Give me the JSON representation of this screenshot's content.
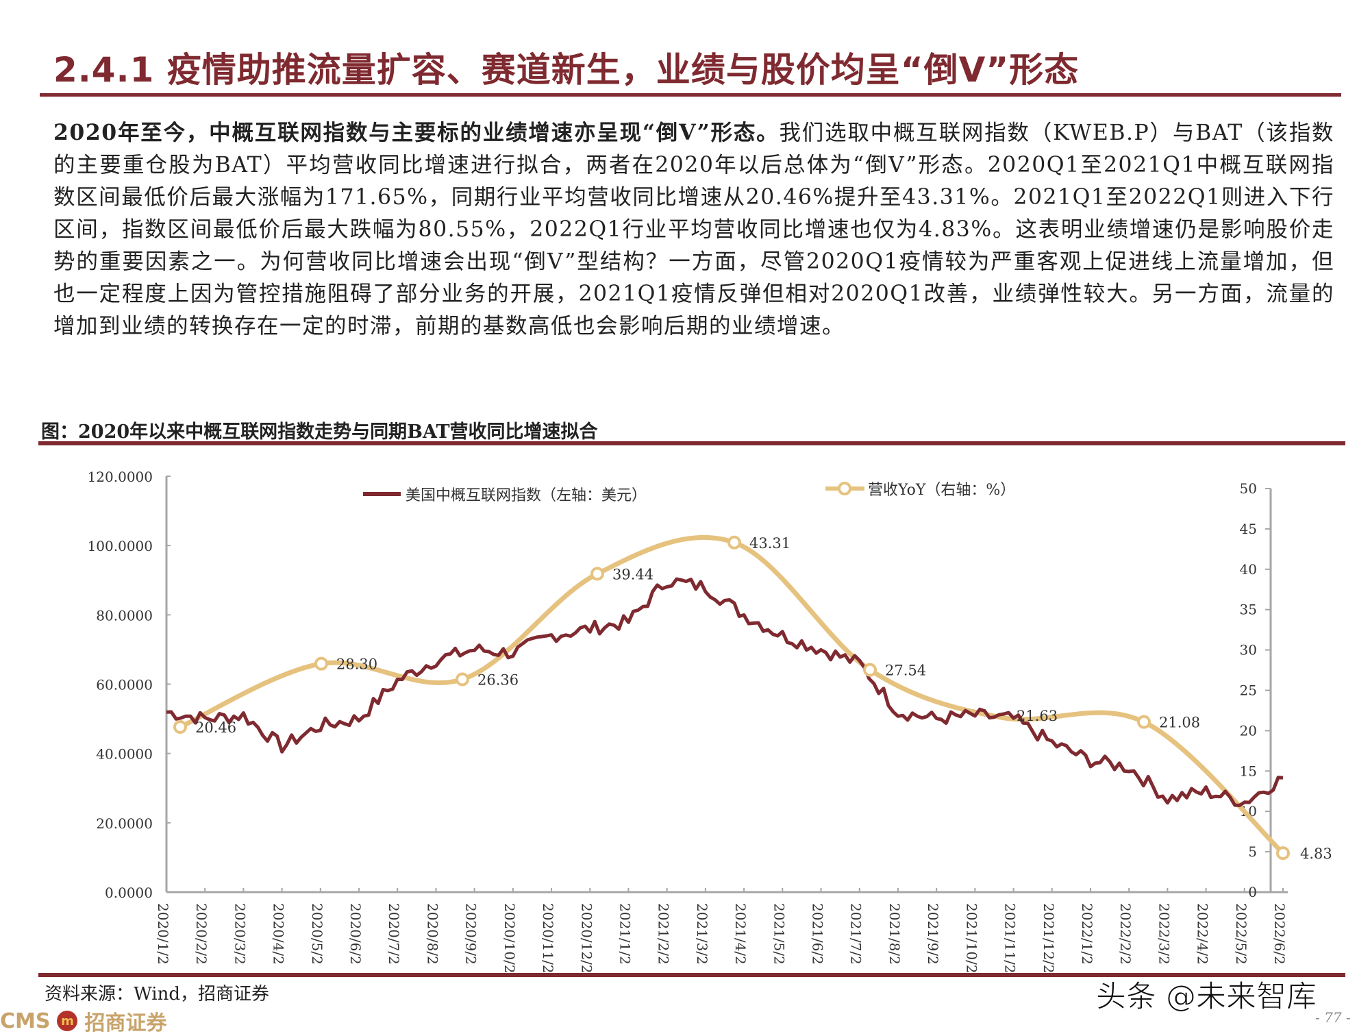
{
  "page": {
    "title": "2.4.1 疫情助推流量扩容、赛道新生，业绩与股价均呈“倒V”形态",
    "paragraph_bold": "2020年至今，中概互联网指数与主要标的业绩增速亦呈现“倒V”形态。",
    "paragraph_rest": "我们选取中概互联网指数（KWEB.P）与BAT（该指数的主要重仓股为BAT）平均营收同比增速进行拟合，两者在2020年以后总体为“倒V”形态。2020Q1至2021Q1中概互联网指数区间最低价后最大涨幅为171.65%，同期行业平均营收同比增速从20.46%提升至43.31%。2021Q1至2022Q1则进入下行区间，指数区间最低价后最大跌幅为80.55%，2022Q1行业平均营收同比增速也仅为4.83%。这表明业绩增速仍是影响股价走势的重要因素之一。为何营收同比增速会出现“倒V”型结构？一方面，尽管2020Q1疫情较为严重客观上促进线上流量增加，但也一定程度上因为管控措施阻碍了部分业务的开展，2021Q1疫情反弹但相对2020Q1改善，业绩弹性较大。另一方面，流量的增加到业绩的转换存在一定的时滞，前期的基数高低也会影响后期的业绩增速。",
    "figure_caption": "图：2020年以来中概互联网指数走势与同期BAT营收同比增速拟合",
    "source": "资料来源：Wind，招商证券",
    "logo_text": "CMS",
    "logo_cn": "招商证券",
    "logo_badge": "m",
    "watermark": "头条 @未来智库",
    "page_number": "- 77 -"
  },
  "colors": {
    "accent": "#7f2a30",
    "index_line": "#7f2a30",
    "yoy_line": "#e6c27f",
    "axis": "#a6a6a6"
  },
  "chart_data": {
    "type": "line",
    "title": "2020年以来中概互联网指数走势与同期BAT营收同比增速拟合",
    "xlabel": "",
    "ylabel_left": "美元",
    "ylabel_right": "%",
    "legend_position": "top",
    "grid": false,
    "left_axis": {
      "ylim": [
        0,
        120
      ],
      "ticks": [
        "0.0000",
        "20.0000",
        "40.0000",
        "60.0000",
        "80.0000",
        "100.0000",
        "120.0000"
      ]
    },
    "right_axis": {
      "ylim": [
        0,
        50
      ],
      "ticks": [
        "0",
        "5",
        "10",
        "15",
        "20",
        "25",
        "30",
        "35",
        "40",
        "45",
        "50"
      ]
    },
    "categories": [
      "2020/1/2",
      "2020/2/2",
      "2020/3/2",
      "2020/4/2",
      "2020/5/2",
      "2020/6/2",
      "2020/7/2",
      "2020/8/2",
      "2020/9/2",
      "2020/10/2",
      "2020/11/2",
      "2020/12/2",
      "2021/1/2",
      "2021/2/2",
      "2021/3/2",
      "2021/4/2",
      "2021/5/2",
      "2021/6/2",
      "2021/7/2",
      "2021/8/2",
      "2021/9/2",
      "2021/10/2",
      "2021/11/2",
      "2021/12/2",
      "2022/1/2",
      "2022/2/2",
      "2022/3/2",
      "2022/4/2",
      "2022/5/2",
      "2022/6/2"
    ],
    "series": [
      {
        "name": "美国中概互联网指数（左轴：美元）",
        "axis": "left",
        "values": [
          52,
          50,
          51,
          42,
          48,
          50,
          61,
          67,
          70,
          69,
          74,
          76,
          78,
          90,
          88,
          80,
          74,
          70,
          66,
          52,
          50,
          51,
          50,
          43,
          38,
          36,
          27,
          29,
          26,
          33
        ]
      },
      {
        "name": "营收YoY（右轴：%）",
        "axis": "right",
        "points": [
          {
            "x": "2020Q1",
            "value": 20.46
          },
          {
            "x": "2020Q2",
            "value": 28.3
          },
          {
            "x": "2020Q3",
            "value": 26.36
          },
          {
            "x": "2020Q4",
            "value": 39.44
          },
          {
            "x": "2021Q1",
            "value": 43.31
          },
          {
            "x": "2021Q2",
            "value": 27.54
          },
          {
            "x": "2021Q3",
            "value": 21.63
          },
          {
            "x": "2021Q4",
            "value": 21.08
          },
          {
            "x": "2022Q1",
            "value": 4.83
          }
        ],
        "labels": [
          "20.46",
          "28.30",
          "26.36",
          "39.44",
          "43.31",
          "27.54",
          "21.63",
          "21.08",
          "4.83"
        ]
      }
    ],
    "legend": [
      "美国中概互联网指数（左轴：美元）",
      "营收YoY（右轴：%）"
    ]
  }
}
